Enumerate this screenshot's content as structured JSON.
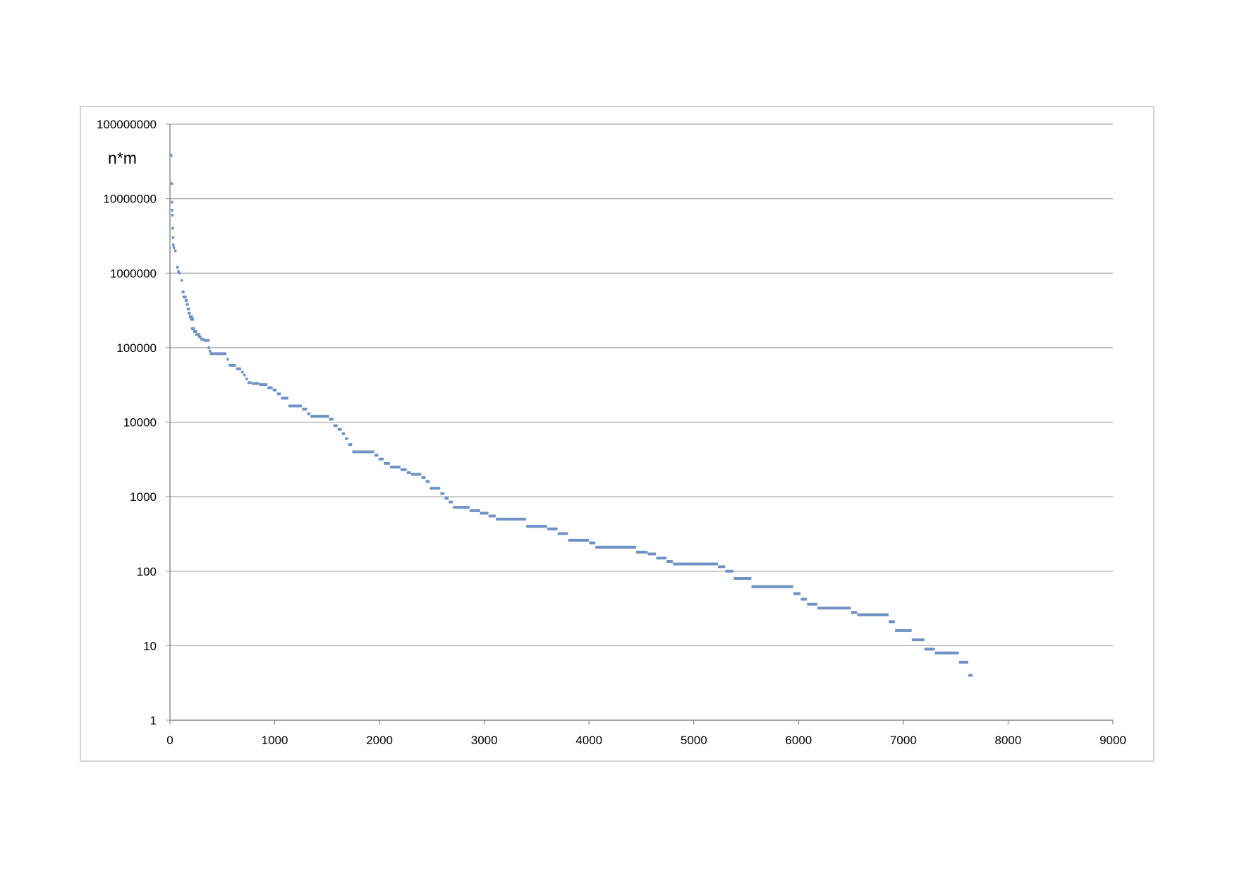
{
  "chart_data": {
    "type": "scatter",
    "title": "",
    "xlabel": "",
    "ylabel": "n*m",
    "xlim": [
      0,
      9000
    ],
    "ylim": [
      1,
      100000000
    ],
    "y_scale": "log",
    "grid": "horizontal",
    "legend": "none",
    "marker_color": "#6f92c6",
    "x_ticks": [
      "0",
      "1000",
      "2000",
      "3000",
      "4000",
      "5000",
      "6000",
      "7000",
      "8000",
      "9000"
    ],
    "y_ticks": [
      "1",
      "10",
      "100",
      "1000",
      "10000",
      "100000",
      "1000000",
      "10000000",
      "100000000"
    ],
    "segments": [
      [
        0,
        10,
        38000000
      ],
      [
        5,
        15,
        16000000
      ],
      [
        8,
        18,
        9000000
      ],
      [
        10,
        20,
        7000000
      ],
      [
        12,
        22,
        6000000
      ],
      [
        15,
        25,
        4000000
      ],
      [
        18,
        28,
        3000000
      ],
      [
        20,
        30,
        2400000
      ],
      [
        25,
        45,
        2200000
      ],
      [
        40,
        60,
        2000000
      ],
      [
        60,
        80,
        1200000
      ],
      [
        70,
        90,
        1050000
      ],
      [
        80,
        100,
        1000000
      ],
      [
        100,
        120,
        800000
      ],
      [
        110,
        140,
        560000
      ],
      [
        120,
        160,
        480000
      ],
      [
        140,
        170,
        430000
      ],
      [
        150,
        180,
        380000
      ],
      [
        160,
        190,
        330000
      ],
      [
        170,
        200,
        290000
      ],
      [
        180,
        220,
        260000
      ],
      [
        190,
        230,
        240000
      ],
      [
        200,
        240,
        180000
      ],
      [
        220,
        260,
        165000
      ],
      [
        240,
        290,
        150000
      ],
      [
        270,
        300,
        140000
      ],
      [
        290,
        330,
        130000
      ],
      [
        320,
        380,
        125000
      ],
      [
        360,
        370,
        100000
      ],
      [
        370,
        390,
        90000
      ],
      [
        380,
        540,
        83000
      ],
      [
        540,
        560,
        70000
      ],
      [
        560,
        630,
        58000
      ],
      [
        630,
        680,
        52000
      ],
      [
        680,
        700,
        47000
      ],
      [
        700,
        720,
        43000
      ],
      [
        720,
        740,
        38000
      ],
      [
        740,
        780,
        34000
      ],
      [
        780,
        850,
        33000
      ],
      [
        850,
        930,
        32000
      ],
      [
        930,
        980,
        29000
      ],
      [
        980,
        1020,
        27000
      ],
      [
        1020,
        1060,
        24000
      ],
      [
        1060,
        1130,
        21000
      ],
      [
        1130,
        1260,
        16500
      ],
      [
        1260,
        1310,
        15000
      ],
      [
        1310,
        1340,
        13000
      ],
      [
        1340,
        1520,
        12000
      ],
      [
        1520,
        1560,
        11000
      ],
      [
        1560,
        1600,
        9000
      ],
      [
        1600,
        1640,
        8000
      ],
      [
        1640,
        1670,
        7000
      ],
      [
        1670,
        1700,
        6000
      ],
      [
        1700,
        1740,
        5000
      ],
      [
        1740,
        1950,
        4000
      ],
      [
        1950,
        1990,
        3600
      ],
      [
        1990,
        2040,
        3200
      ],
      [
        2040,
        2100,
        2800
      ],
      [
        2100,
        2200,
        2500
      ],
      [
        2200,
        2260,
        2300
      ],
      [
        2260,
        2300,
        2100
      ],
      [
        2300,
        2400,
        2000
      ],
      [
        2400,
        2440,
        1800
      ],
      [
        2440,
        2480,
        1600
      ],
      [
        2480,
        2580,
        1300
      ],
      [
        2580,
        2620,
        1100
      ],
      [
        2620,
        2660,
        950
      ],
      [
        2660,
        2700,
        850
      ],
      [
        2700,
        2860,
        720
      ],
      [
        2860,
        2960,
        650
      ],
      [
        2960,
        3040,
        600
      ],
      [
        3040,
        3110,
        550
      ],
      [
        3110,
        3400,
        500
      ],
      [
        3400,
        3600,
        400
      ],
      [
        3600,
        3700,
        370
      ],
      [
        3700,
        3800,
        320
      ],
      [
        3800,
        4000,
        260
      ],
      [
        4000,
        4060,
        240
      ],
      [
        4060,
        4450,
        210
      ],
      [
        4450,
        4560,
        180
      ],
      [
        4560,
        4640,
        170
      ],
      [
        4640,
        4740,
        150
      ],
      [
        4740,
        4800,
        135
      ],
      [
        4800,
        5230,
        125
      ],
      [
        5230,
        5300,
        115
      ],
      [
        5300,
        5380,
        100
      ],
      [
        5380,
        5550,
        80
      ],
      [
        5550,
        5950,
        62
      ],
      [
        5950,
        6020,
        50
      ],
      [
        6020,
        6080,
        42
      ],
      [
        6080,
        6180,
        36
      ],
      [
        6180,
        6500,
        32
      ],
      [
        6500,
        6560,
        28
      ],
      [
        6560,
        6860,
        26
      ],
      [
        6860,
        6920,
        21
      ],
      [
        6920,
        7080,
        16
      ],
      [
        7080,
        7200,
        12
      ],
      [
        7200,
        7300,
        9
      ],
      [
        7300,
        7530,
        8
      ],
      [
        7530,
        7620,
        6
      ],
      [
        7620,
        7660,
        4
      ]
    ]
  }
}
